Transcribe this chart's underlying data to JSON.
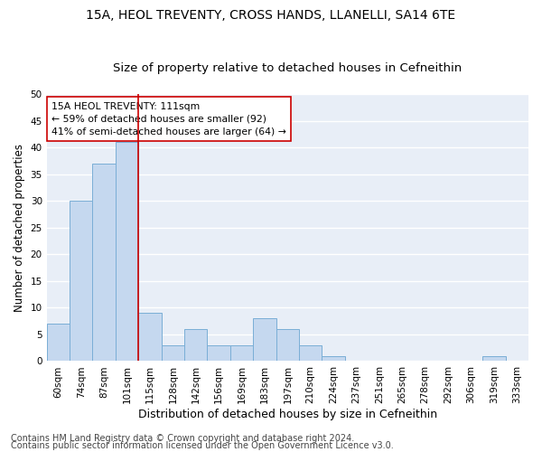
{
  "title": "15A, HEOL TREVENTY, CROSS HANDS, LLANELLI, SA14 6TE",
  "subtitle": "Size of property relative to detached houses in Cefneithin",
  "xlabel": "Distribution of detached houses by size in Cefneithin",
  "ylabel": "Number of detached properties",
  "categories": [
    "60sqm",
    "74sqm",
    "87sqm",
    "101sqm",
    "115sqm",
    "128sqm",
    "142sqm",
    "156sqm",
    "169sqm",
    "183sqm",
    "197sqm",
    "210sqm",
    "224sqm",
    "237sqm",
    "251sqm",
    "265sqm",
    "278sqm",
    "292sqm",
    "306sqm",
    "319sqm",
    "333sqm"
  ],
  "values": [
    7,
    30,
    37,
    41,
    9,
    3,
    6,
    3,
    3,
    8,
    6,
    3,
    1,
    0,
    0,
    0,
    0,
    0,
    0,
    1,
    0
  ],
  "bar_color": "#c5d8ef",
  "bar_edge_color": "#7aaed6",
  "vline_color": "#cc0000",
  "vline_x": 3.5,
  "annotation_text": "15A HEOL TREVENTY: 111sqm\n← 59% of detached houses are smaller (92)\n41% of semi-detached houses are larger (64) →",
  "annotation_box_facecolor": "#ffffff",
  "annotation_box_edgecolor": "#cc0000",
  "ylim": [
    0,
    50
  ],
  "yticks": [
    0,
    5,
    10,
    15,
    20,
    25,
    30,
    35,
    40,
    45,
    50
  ],
  "footer1": "Contains HM Land Registry data © Crown copyright and database right 2024.",
  "footer2": "Contains public sector information licensed under the Open Government Licence v3.0.",
  "fig_facecolor": "#ffffff",
  "ax_facecolor": "#e8eef7",
  "grid_color": "#ffffff",
  "title_fontsize": 10,
  "subtitle_fontsize": 9.5,
  "xlabel_fontsize": 9,
  "ylabel_fontsize": 8.5,
  "tick_fontsize": 7.5,
  "annotation_fontsize": 7.8,
  "footer_fontsize": 7
}
